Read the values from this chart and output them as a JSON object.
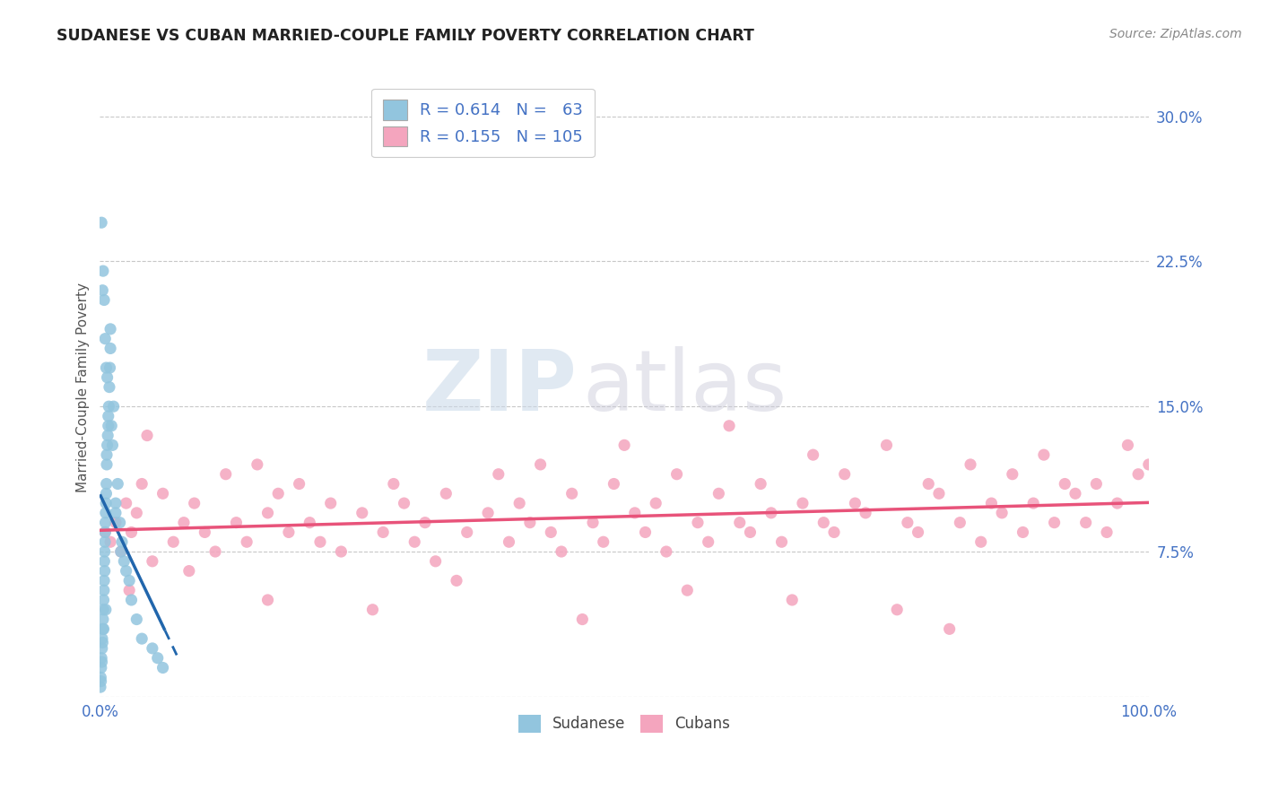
{
  "title": "SUDANESE VS CUBAN MARRIED-COUPLE FAMILY POVERTY CORRELATION CHART",
  "source": "Source: ZipAtlas.com",
  "ylabel": "Married-Couple Family Poverty",
  "xlim": [
    0,
    100
  ],
  "ylim": [
    0,
    32
  ],
  "yticks": [
    0,
    7.5,
    15.0,
    22.5,
    30.0
  ],
  "xticks": [
    0,
    100
  ],
  "xtick_labels": [
    "0.0%",
    "100.0%"
  ],
  "ytick_labels": [
    "",
    "7.5%",
    "15.0%",
    "22.5%",
    "30.0%"
  ],
  "sudanese_R": 0.614,
  "sudanese_N": 63,
  "cuban_R": 0.155,
  "cuban_N": 105,
  "sudanese_color": "#92c5de",
  "cuban_color": "#f4a5be",
  "sudanese_line_color": "#2166ac",
  "cuban_line_color": "#e8537a",
  "background_color": "#ffffff",
  "grid_color": "#c8c8c8",
  "title_color": "#222222",
  "axis_label_color": "#4472c4",
  "watermark_zip": "ZIP",
  "watermark_atlas": "atlas",
  "legend_label1": "R = 0.614   N =   63",
  "legend_label2": "R = 0.155   N = 105",
  "bottom_legend_labels": [
    "Sudanese",
    "Cubans"
  ],
  "sud_x": [
    0.05,
    0.08,
    0.1,
    0.12,
    0.15,
    0.18,
    0.2,
    0.22,
    0.25,
    0.28,
    0.3,
    0.32,
    0.35,
    0.38,
    0.4,
    0.42,
    0.45,
    0.48,
    0.5,
    0.52,
    0.55,
    0.58,
    0.6,
    0.62,
    0.65,
    0.7,
    0.75,
    0.8,
    0.85,
    0.9,
    0.95,
    1.0,
    1.1,
    1.2,
    1.3,
    1.5,
    1.7,
    1.9,
    2.1,
    2.3,
    2.5,
    2.8,
    3.0,
    3.5,
    4.0,
    5.0,
    5.5,
    6.0,
    1.0,
    0.3,
    0.4,
    0.6,
    0.7,
    0.5,
    0.25,
    0.15,
    0.35,
    0.55,
    0.45,
    0.65,
    0.8,
    1.5,
    2.0
  ],
  "sud_y": [
    0.5,
    1.0,
    0.8,
    1.5,
    2.0,
    1.8,
    2.5,
    3.0,
    2.8,
    3.5,
    4.0,
    4.5,
    5.0,
    5.5,
    6.0,
    7.0,
    7.5,
    8.0,
    8.5,
    9.0,
    9.5,
    10.0,
    10.5,
    11.0,
    12.0,
    13.0,
    13.5,
    14.0,
    15.0,
    16.0,
    17.0,
    18.0,
    14.0,
    13.0,
    15.0,
    10.0,
    11.0,
    9.0,
    8.0,
    7.0,
    6.5,
    6.0,
    5.0,
    4.0,
    3.0,
    2.5,
    2.0,
    1.5,
    19.0,
    22.0,
    20.5,
    17.0,
    16.5,
    18.5,
    21.0,
    24.5,
    3.5,
    4.5,
    6.5,
    12.5,
    14.5,
    9.5,
    7.5
  ],
  "cub_x": [
    0.5,
    1.0,
    1.5,
    2.0,
    2.5,
    3.0,
    3.5,
    4.0,
    5.0,
    6.0,
    7.0,
    8.0,
    9.0,
    10.0,
    11.0,
    12.0,
    13.0,
    14.0,
    15.0,
    16.0,
    17.0,
    18.0,
    19.0,
    20.0,
    21.0,
    22.0,
    23.0,
    25.0,
    27.0,
    28.0,
    29.0,
    30.0,
    31.0,
    32.0,
    33.0,
    35.0,
    37.0,
    38.0,
    39.0,
    40.0,
    41.0,
    42.0,
    43.0,
    44.0,
    45.0,
    47.0,
    48.0,
    49.0,
    50.0,
    51.0,
    52.0,
    53.0,
    54.0,
    55.0,
    57.0,
    58.0,
    59.0,
    60.0,
    61.0,
    62.0,
    63.0,
    64.0,
    65.0,
    67.0,
    68.0,
    69.0,
    70.0,
    71.0,
    72.0,
    73.0,
    75.0,
    77.0,
    78.0,
    79.0,
    80.0,
    82.0,
    83.0,
    84.0,
    85.0,
    86.0,
    87.0,
    88.0,
    89.0,
    90.0,
    91.0,
    92.0,
    93.0,
    94.0,
    95.0,
    96.0,
    97.0,
    98.0,
    99.0,
    2.8,
    4.5,
    8.5,
    16.0,
    26.0,
    34.0,
    46.0,
    56.0,
    66.0,
    76.0,
    81.0,
    100.0
  ],
  "cub_y": [
    8.5,
    8.0,
    9.0,
    7.5,
    10.0,
    8.5,
    9.5,
    11.0,
    7.0,
    10.5,
    8.0,
    9.0,
    10.0,
    8.5,
    7.5,
    11.5,
    9.0,
    8.0,
    12.0,
    9.5,
    10.5,
    8.5,
    11.0,
    9.0,
    8.0,
    10.0,
    7.5,
    9.5,
    8.5,
    11.0,
    10.0,
    8.0,
    9.0,
    7.0,
    10.5,
    8.5,
    9.5,
    11.5,
    8.0,
    10.0,
    9.0,
    12.0,
    8.5,
    7.5,
    10.5,
    9.0,
    8.0,
    11.0,
    13.0,
    9.5,
    8.5,
    10.0,
    7.5,
    11.5,
    9.0,
    8.0,
    10.5,
    14.0,
    9.0,
    8.5,
    11.0,
    9.5,
    8.0,
    10.0,
    12.5,
    9.0,
    8.5,
    11.5,
    10.0,
    9.5,
    13.0,
    9.0,
    8.5,
    11.0,
    10.5,
    9.0,
    12.0,
    8.0,
    10.0,
    9.5,
    11.5,
    8.5,
    10.0,
    12.5,
    9.0,
    11.0,
    10.5,
    9.0,
    11.0,
    8.5,
    10.0,
    13.0,
    11.5,
    5.5,
    13.5,
    6.5,
    5.0,
    4.5,
    6.0,
    4.0,
    5.5,
    5.0,
    4.5,
    3.5,
    12.0
  ],
  "sud_line_x_start": 0.0,
  "sud_line_x_end": 6.2,
  "sud_line_x_dash_end": 7.5,
  "cub_line_x_start": 0.0,
  "cub_line_x_end": 100.0
}
